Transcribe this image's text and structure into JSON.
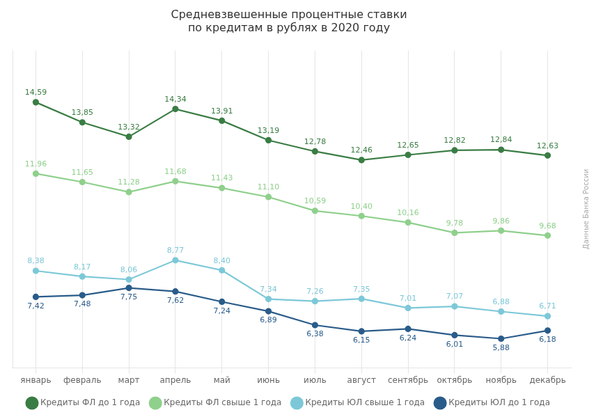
{
  "chart_data": {
    "type": "line",
    "title": "Средневзвешенные процентные ставки\nпо кредитам в рублях в 2020 году",
    "categories": [
      "январь",
      "февраль",
      "март",
      "апрель",
      "май",
      "июнь",
      "июль",
      "август",
      "сентябрь",
      "октябрь",
      "ноябрь",
      "декабрь"
    ],
    "series": [
      {
        "name": "Кредиты ФЛ до 1 года",
        "color": "#3a7d44",
        "marker": "circle",
        "values": [
          14.59,
          13.85,
          13.32,
          14.34,
          13.91,
          13.19,
          12.78,
          12.46,
          12.65,
          12.82,
          12.84,
          12.63
        ],
        "value_labels": [
          "14,59",
          "13,85",
          "13,32",
          "14,34",
          "13,91",
          "13,19",
          "12,78",
          "12,46",
          "12,65",
          "12,82",
          "12,84",
          "12,63"
        ]
      },
      {
        "name": "Кредиты ФЛ свыше 1 года",
        "color": "#8fd08c",
        "marker": "circle",
        "values": [
          11.96,
          11.65,
          11.28,
          11.68,
          11.43,
          11.1,
          10.59,
          10.4,
          10.16,
          9.78,
          9.86,
          9.68
        ],
        "value_labels": [
          "11,96",
          "11,65",
          "11,28",
          "11,68",
          "11,43",
          "11,10",
          "10,59",
          "10,40",
          "10,16",
          "9,78",
          "9,86",
          "9,68"
        ]
      },
      {
        "name": "Кредиты ЮЛ свыше 1 года",
        "color": "#7dc8d8",
        "marker": "circle",
        "values": [
          8.38,
          8.17,
          8.06,
          8.77,
          8.4,
          7.34,
          7.26,
          7.35,
          7.01,
          7.07,
          6.88,
          6.71
        ],
        "value_labels": [
          "8,38",
          "8,17",
          "8,06",
          "8,77",
          "8,40",
          "7,34",
          "7,26",
          "7,35",
          "7,01",
          "7,07",
          "6,88",
          "6,71"
        ]
      },
      {
        "name": "Кредиты ЮЛ до 1 года",
        "color": "#2a5c8a",
        "marker": "circle",
        "values": [
          7.42,
          7.48,
          7.75,
          7.62,
          7.24,
          6.89,
          6.38,
          6.15,
          6.24,
          6.01,
          5.88,
          6.18
        ],
        "value_labels": [
          "7,42",
          "7,48",
          "7,75",
          "7,62",
          "7,24",
          "6,89",
          "6,38",
          "6,15",
          "6,24",
          "6,01",
          "5,88",
          "6,18"
        ]
      }
    ],
    "ylim": [
      4.8,
      16.5
    ],
    "tick_labels": "x",
    "grid": "x",
    "legend": "bottom",
    "data_labels": true,
    "annotations": [
      "Данные Банка России"
    ]
  }
}
